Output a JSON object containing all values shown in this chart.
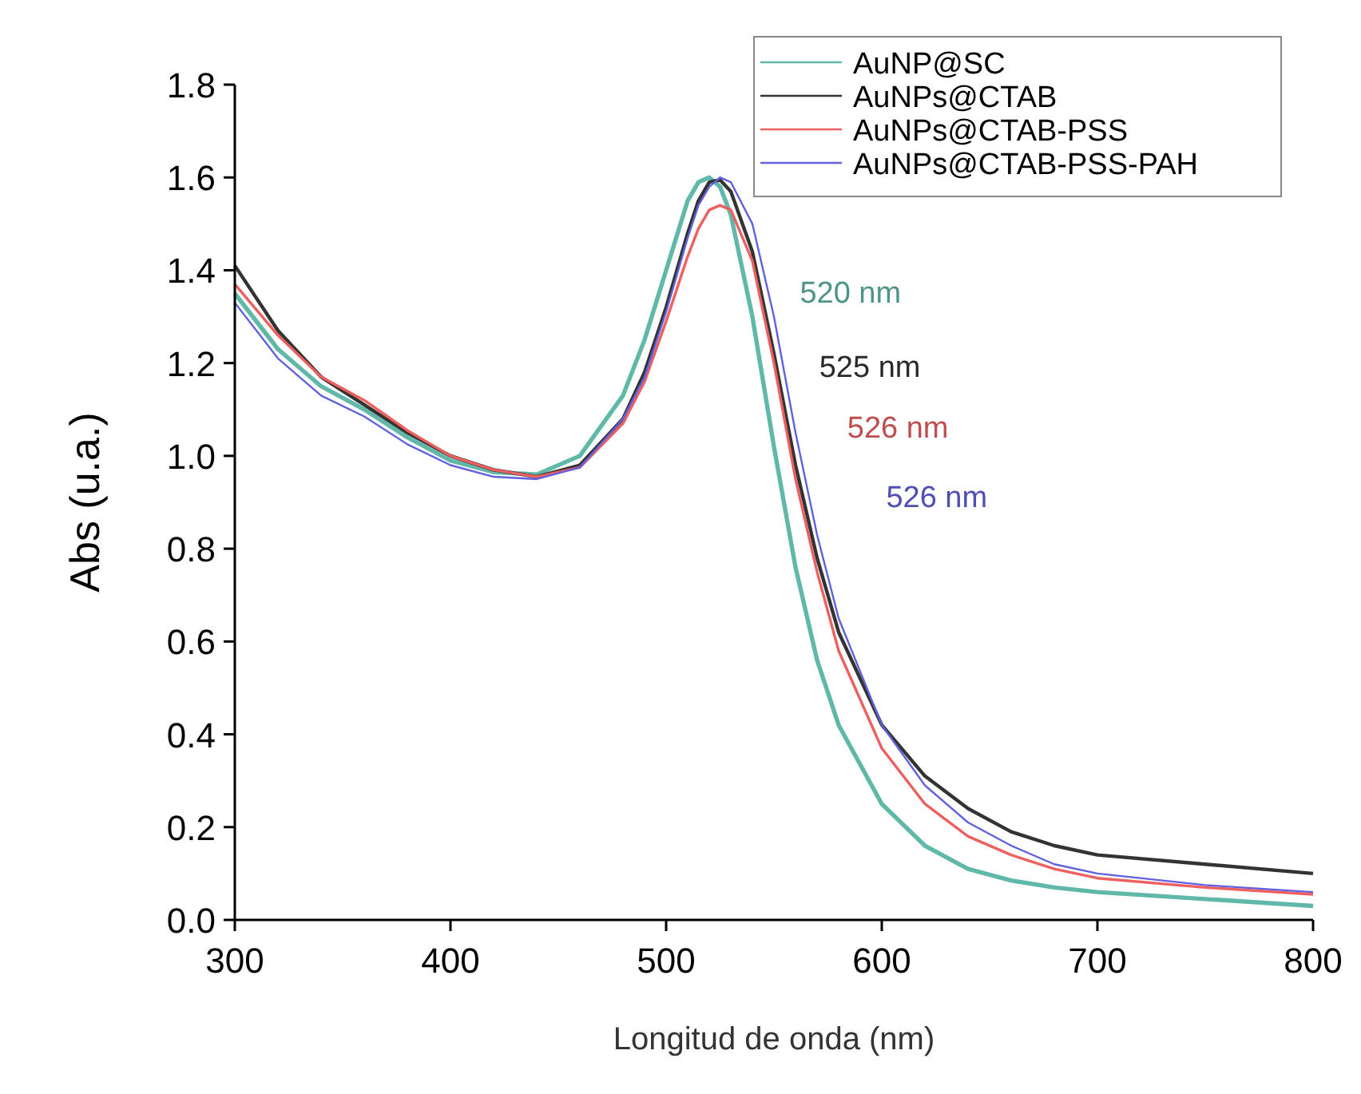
{
  "chart_data": {
    "type": "line",
    "xlabel": "Longitud de onda (nm)",
    "ylabel": "Abs (u.a.)",
    "x": [
      300,
      320,
      340,
      360,
      380,
      400,
      420,
      440,
      460,
      480,
      490,
      500,
      510,
      515,
      520,
      525,
      530,
      540,
      550,
      560,
      570,
      580,
      600,
      620,
      640,
      660,
      680,
      700,
      750,
      800
    ],
    "xlim": [
      300,
      800
    ],
    "xticks": [
      300,
      400,
      500,
      600,
      700,
      800
    ],
    "ylim": [
      0,
      1.8
    ],
    "yticks": [
      {
        "value": 0,
        "label": "0.0"
      },
      {
        "value": 0.2,
        "label": "0.2"
      },
      {
        "value": 0.4,
        "label": "0.4"
      },
      {
        "value": 0.6,
        "label": "0.6"
      },
      {
        "value": 0.8,
        "label": "0.8"
      },
      {
        "value": 1,
        "label": "1.0"
      },
      {
        "value": 1.2,
        "label": "1.2"
      },
      {
        "value": 1.4,
        "label": "1.4"
      },
      {
        "value": 1.6,
        "label": "1.6"
      },
      {
        "value": 1.8,
        "label": "1.8"
      }
    ],
    "grid": false,
    "legend": "top right",
    "marker": "none",
    "line_style": "solid",
    "series": [
      {
        "name": "AuNP@SC",
        "color": "#5fb8a8",
        "values": [
          1.35,
          1.23,
          1.15,
          1.1,
          1.04,
          0.99,
          0.965,
          0.96,
          1.0,
          1.13,
          1.25,
          1.4,
          1.55,
          1.59,
          1.6,
          1.58,
          1.52,
          1.3,
          1.02,
          0.76,
          0.56,
          0.42,
          0.25,
          0.16,
          0.11,
          0.085,
          0.07,
          0.06,
          0.045,
          0.03
        ]
      },
      {
        "name": "AuNPs@CTAB",
        "color": "#333333",
        "values": [
          1.41,
          1.27,
          1.17,
          1.11,
          1.05,
          1.0,
          0.97,
          0.955,
          0.98,
          1.08,
          1.18,
          1.32,
          1.48,
          1.55,
          1.59,
          1.595,
          1.57,
          1.44,
          1.22,
          0.98,
          0.78,
          0.62,
          0.42,
          0.31,
          0.24,
          0.19,
          0.16,
          0.14,
          0.12,
          0.1
        ]
      },
      {
        "name": "AuNPs@CTAB-PSS",
        "color": "#ee6060",
        "values": [
          1.37,
          1.26,
          1.17,
          1.12,
          1.055,
          1.0,
          0.97,
          0.955,
          0.975,
          1.07,
          1.16,
          1.29,
          1.43,
          1.49,
          1.53,
          1.54,
          1.53,
          1.42,
          1.2,
          0.95,
          0.75,
          0.58,
          0.37,
          0.25,
          0.18,
          0.14,
          0.11,
          0.09,
          0.07,
          0.055
        ]
      },
      {
        "name": "AuNPs@CTAB-PSS-PAH",
        "color": "#6060e0",
        "values": [
          1.33,
          1.21,
          1.13,
          1.085,
          1.025,
          0.98,
          0.955,
          0.95,
          0.975,
          1.08,
          1.17,
          1.31,
          1.47,
          1.54,
          1.58,
          1.6,
          1.59,
          1.5,
          1.3,
          1.05,
          0.83,
          0.65,
          0.42,
          0.29,
          0.21,
          0.16,
          0.12,
          0.1,
          0.075,
          0.06
        ]
      }
    ],
    "annotations": [
      "520 nm",
      "525 nm",
      "526 nm",
      "526 nm"
    ]
  }
}
